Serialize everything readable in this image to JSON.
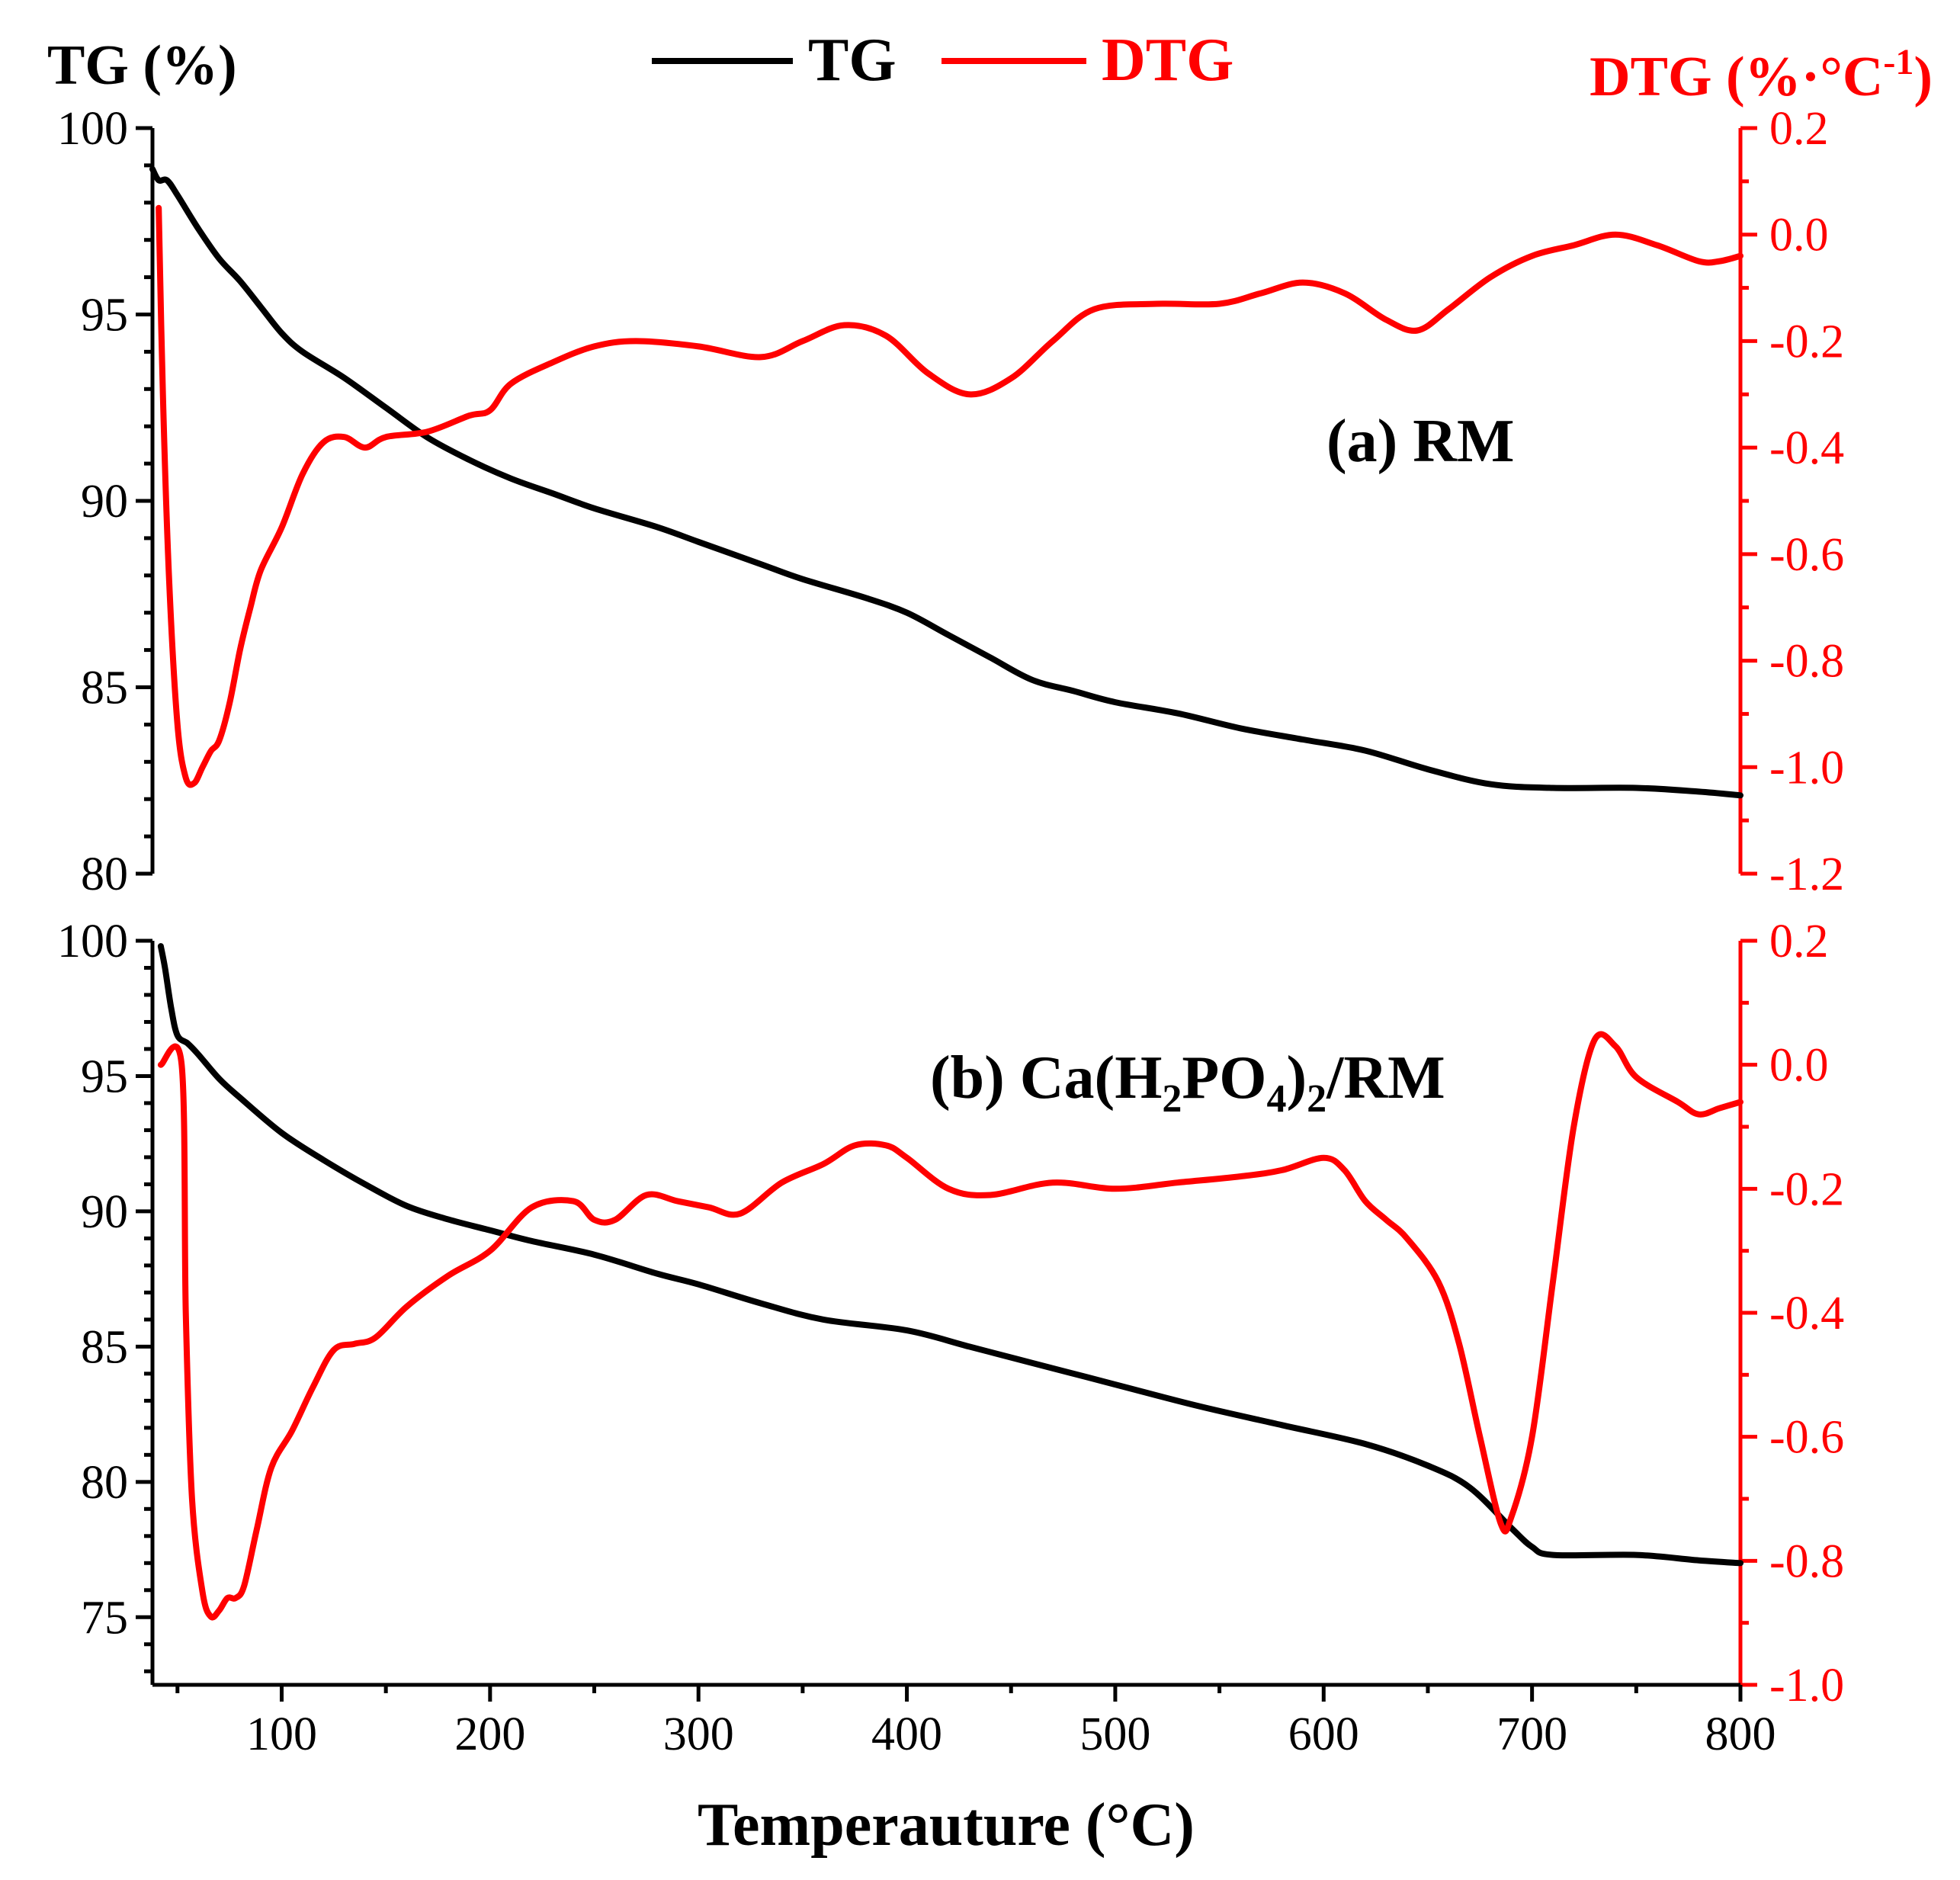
{
  "chart_data": {
    "type": "line",
    "legend": {
      "position": "top-center",
      "entries": [
        {
          "name": "TG",
          "color": "#000000"
        },
        {
          "name": "DTG",
          "color": "#ff0000"
        }
      ]
    },
    "left_axis_title": "TG (%)",
    "right_axis_title": "DTG (%·°C",
    "right_axis_title_sup": "-1",
    "right_axis_title_close": ")",
    "xlabel": "Temperauture (°C)",
    "xlim": [
      38,
      800
    ],
    "xticks": [
      100,
      200,
      300,
      400,
      500,
      600,
      700,
      800
    ],
    "xtick_labels": [
      "100",
      "200",
      "300",
      "400",
      "500",
      "600",
      "700",
      "800"
    ],
    "panels": [
      {
        "label": "(a) RM",
        "tg_ylim": [
          80,
          100
        ],
        "tg_yticks": [
          "100",
          "95",
          "90",
          "85",
          "80"
        ],
        "dtg_ylim": [
          -1.2,
          0.2
        ],
        "dtg_yticks": [
          "0.2",
          "0.0",
          "-0.2",
          "-0.4",
          "-0.6",
          "-0.8",
          "-1.0",
          "-1.2"
        ],
        "series": [
          {
            "name": "TG",
            "axis": "left",
            "points": [
              [
                38,
                98.9
              ],
              [
                41,
                98.6
              ],
              [
                45,
                98.6
              ],
              [
                50,
                98.2
              ],
              [
                60,
                97.3
              ],
              [
                70,
                96.5
              ],
              [
                80,
                95.9
              ],
              [
                90,
                95.2
              ],
              [
                100,
                94.5
              ],
              [
                110,
                94.0
              ],
              [
                130,
                93.3
              ],
              [
                150,
                92.5
              ],
              [
                170,
                91.7
              ],
              [
                190,
                91.1
              ],
              [
                210,
                90.6
              ],
              [
                230,
                90.2
              ],
              [
                250,
                89.8
              ],
              [
                280,
                89.3
              ],
              [
                300,
                88.9
              ],
              [
                330,
                88.3
              ],
              [
                350,
                87.9
              ],
              [
                380,
                87.4
              ],
              [
                400,
                87.0
              ],
              [
                420,
                86.4
              ],
              [
                440,
                85.8
              ],
              [
                460,
                85.2
              ],
              [
                480,
                84.9
              ],
              [
                500,
                84.6
              ],
              [
                530,
                84.3
              ],
              [
                560,
                83.9
              ],
              [
                590,
                83.6
              ],
              [
                620,
                83.3
              ],
              [
                650,
                82.8
              ],
              [
                680,
                82.4
              ],
              [
                710,
                82.3
              ],
              [
                750,
                82.3
              ],
              [
                780,
                82.2
              ],
              [
                800,
                82.1
              ]
            ]
          },
          {
            "name": "DTG",
            "axis": "right",
            "points": [
              [
                41,
                0.05
              ],
              [
                43,
                -0.3
              ],
              [
                46,
                -0.65
              ],
              [
                50,
                -0.92
              ],
              [
                54,
                -1.02
              ],
              [
                58,
                -1.03
              ],
              [
                62,
                -1.0
              ],
              [
                66,
                -0.97
              ],
              [
                70,
                -0.95
              ],
              [
                75,
                -0.88
              ],
              [
                80,
                -0.78
              ],
              [
                85,
                -0.7
              ],
              [
                90,
                -0.63
              ],
              [
                100,
                -0.55
              ],
              [
                110,
                -0.45
              ],
              [
                120,
                -0.39
              ],
              [
                130,
                -0.38
              ],
              [
                140,
                -0.4
              ],
              [
                150,
                -0.38
              ],
              [
                170,
                -0.37
              ],
              [
                190,
                -0.34
              ],
              [
                200,
                -0.33
              ],
              [
                210,
                -0.28
              ],
              [
                230,
                -0.24
              ],
              [
                250,
                -0.21
              ],
              [
                270,
                -0.2
              ],
              [
                300,
                -0.21
              ],
              [
                330,
                -0.23
              ],
              [
                350,
                -0.2
              ],
              [
                370,
                -0.17
              ],
              [
                390,
                -0.19
              ],
              [
                410,
                -0.26
              ],
              [
                430,
                -0.3
              ],
              [
                450,
                -0.27
              ],
              [
                470,
                -0.2
              ],
              [
                490,
                -0.14
              ],
              [
                520,
                -0.13
              ],
              [
                550,
                -0.13
              ],
              [
                570,
                -0.11
              ],
              [
                590,
                -0.09
              ],
              [
                610,
                -0.11
              ],
              [
                630,
                -0.16
              ],
              [
                645,
                -0.18
              ],
              [
                660,
                -0.14
              ],
              [
                680,
                -0.08
              ],
              [
                700,
                -0.04
              ],
              [
                720,
                -0.02
              ],
              [
                740,
                0.0
              ],
              [
                760,
                -0.02
              ],
              [
                780,
                -0.05
              ],
              [
                790,
                -0.05
              ],
              [
                800,
                -0.04
              ]
            ]
          }
        ]
      },
      {
        "label_prefix": "(b) Ca(H",
        "label_sub1": "2",
        "label_mid": "PO",
        "label_sub2": "4",
        "label_close": ")",
        "label_sub3": "2",
        "label_suffix": "/RM",
        "tg_ylim": [
          72.5,
          100
        ],
        "tg_yticks": [
          "100",
          "95",
          "90",
          "85",
          "80",
          "75"
        ],
        "dtg_ylim": [
          -1.0,
          0.2
        ],
        "dtg_yticks": [
          "0.2",
          "0.0",
          "-0.2",
          "-0.4",
          "-0.6",
          "-0.8",
          "-1.0"
        ],
        "series": [
          {
            "name": "TG",
            "axis": "left",
            "points": [
              [
                42,
                99.8
              ],
              [
                44,
                99.0
              ],
              [
                47,
                97.5
              ],
              [
                50,
                96.5
              ],
              [
                55,
                96.2
              ],
              [
                60,
                95.8
              ],
              [
                70,
                94.9
              ],
              [
                80,
                94.2
              ],
              [
                100,
                92.9
              ],
              [
                120,
                91.9
              ],
              [
                140,
                91.0
              ],
              [
                160,
                90.2
              ],
              [
                180,
                89.7
              ],
              [
                200,
                89.3
              ],
              [
                220,
                88.9
              ],
              [
                250,
                88.4
              ],
              [
                280,
                87.7
              ],
              [
                300,
                87.3
              ],
              [
                330,
                86.6
              ],
              [
                360,
                86.0
              ],
              [
                400,
                85.6
              ],
              [
                430,
                85.0
              ],
              [
                460,
                84.4
              ],
              [
                500,
                83.6
              ],
              [
                540,
                82.8
              ],
              [
                580,
                82.1
              ],
              [
                620,
                81.4
              ],
              [
                650,
                80.6
              ],
              [
                670,
                79.8
              ],
              [
                690,
                78.3
              ],
              [
                700,
                77.6
              ],
              [
                710,
                77.3
              ],
              [
                750,
                77.3
              ],
              [
                780,
                77.1
              ],
              [
                800,
                77.0
              ]
            ]
          },
          {
            "name": "DTG",
            "axis": "right",
            "points": [
              [
                42,
                0.0
              ],
              [
                52,
                0.0
              ],
              [
                54,
                -0.4
              ],
              [
                57,
                -0.7
              ],
              [
                62,
                -0.85
              ],
              [
                66,
                -0.89
              ],
              [
                70,
                -0.88
              ],
              [
                74,
                -0.86
              ],
              [
                78,
                -0.86
              ],
              [
                82,
                -0.84
              ],
              [
                88,
                -0.75
              ],
              [
                95,
                -0.65
              ],
              [
                105,
                -0.59
              ],
              [
                115,
                -0.52
              ],
              [
                125,
                -0.46
              ],
              [
                135,
                -0.45
              ],
              [
                145,
                -0.44
              ],
              [
                160,
                -0.39
              ],
              [
                180,
                -0.34
              ],
              [
                200,
                -0.3
              ],
              [
                220,
                -0.23
              ],
              [
                240,
                -0.22
              ],
              [
                250,
                -0.25
              ],
              [
                260,
                -0.25
              ],
              [
                275,
                -0.21
              ],
              [
                290,
                -0.22
              ],
              [
                305,
                -0.23
              ],
              [
                320,
                -0.24
              ],
              [
                340,
                -0.19
              ],
              [
                360,
                -0.16
              ],
              [
                375,
                -0.13
              ],
              [
                390,
                -0.13
              ],
              [
                400,
                -0.15
              ],
              [
                420,
                -0.2
              ],
              [
                440,
                -0.21
              ],
              [
                470,
                -0.19
              ],
              [
                500,
                -0.2
              ],
              [
                530,
                -0.19
              ],
              [
                560,
                -0.18
              ],
              [
                580,
                -0.17
              ],
              [
                600,
                -0.15
              ],
              [
                610,
                -0.17
              ],
              [
                620,
                -0.22
              ],
              [
                630,
                -0.25
              ],
              [
                640,
                -0.28
              ],
              [
                655,
                -0.35
              ],
              [
                665,
                -0.45
              ],
              [
                675,
                -0.6
              ],
              [
                685,
                -0.74
              ],
              [
                690,
                -0.73
              ],
              [
                700,
                -0.6
              ],
              [
                710,
                -0.35
              ],
              [
                720,
                -0.1
              ],
              [
                730,
                0.04
              ],
              [
                740,
                0.03
              ],
              [
                750,
                -0.02
              ],
              [
                770,
                -0.06
              ],
              [
                780,
                -0.08
              ],
              [
                790,
                -0.07
              ],
              [
                800,
                -0.06
              ]
            ]
          }
        ]
      }
    ]
  }
}
